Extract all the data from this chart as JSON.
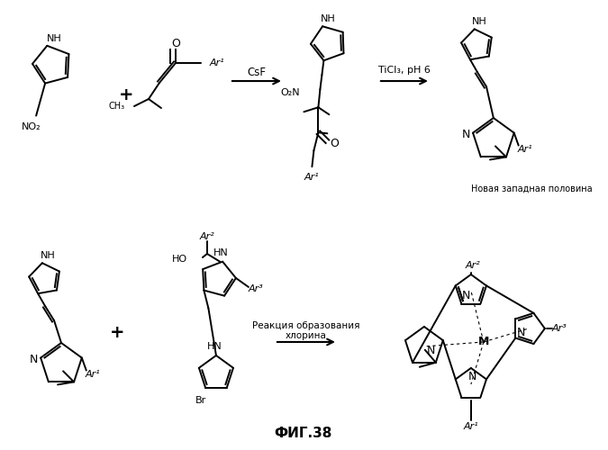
{
  "background_color": "#ffffff",
  "fig_label": "ФИГ.38",
  "csf_label": "CsF",
  "ticl3_label": "TiCl₃, pH 6",
  "new_west": "Новая западная половина",
  "reaction_label1": "Реакция образования",
  "reaction_label2": "хлорина"
}
